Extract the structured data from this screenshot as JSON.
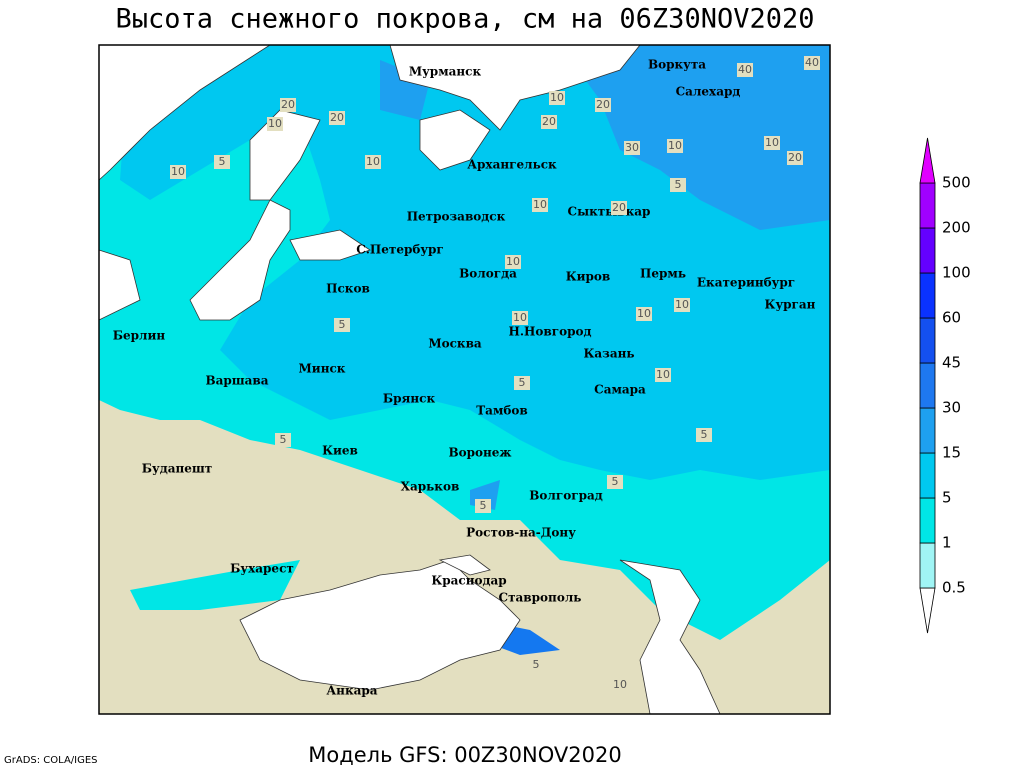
{
  "title": "Высота снежного покрова, см на 06Z30NOV2020",
  "footer": "Модель GFS: 00Z30NOV2020",
  "credit": "GrADS: COLA/IGES",
  "colorbar": {
    "levels": [
      0.5,
      1,
      5,
      15,
      30,
      45,
      60,
      100,
      200,
      500
    ],
    "colors": [
      "#ffffff",
      "#a0f5f5",
      "#00e6e6",
      "#00c8f0",
      "#1ea0f0",
      "#1e78f0",
      "#1450f0",
      "#0a32ff",
      "#6400ff",
      "#a000ff",
      "#e000ff"
    ]
  },
  "cities": [
    "Мурманск",
    "Воркута",
    "Салехард",
    "Архангельск",
    "Петрозаводск",
    "Сыктывкар",
    "С.Петербург",
    "Вологда",
    "Киров",
    "Пермь",
    "Екатеринбург",
    "Курган",
    "Псков",
    "Н.Новгород",
    "Казань",
    "Берлин",
    "Москва",
    "Минск",
    "Варшава",
    "Самара",
    "Брянск",
    "Тамбов",
    "Киев",
    "Воронеж",
    "Харьков",
    "Будапешт",
    "Волгоград",
    "Ростов-на-Дону",
    "Бухарест",
    "Краснодар",
    "Ставрополь",
    "Анкара"
  ],
  "contour_labels": [
    40,
    40,
    20,
    20,
    10,
    20,
    10,
    20,
    30,
    10,
    10,
    20,
    5,
    10,
    20,
    5,
    10,
    10,
    10,
    10,
    10,
    5,
    10,
    5,
    10,
    5,
    5,
    5,
    5,
    5,
    10
  ]
}
